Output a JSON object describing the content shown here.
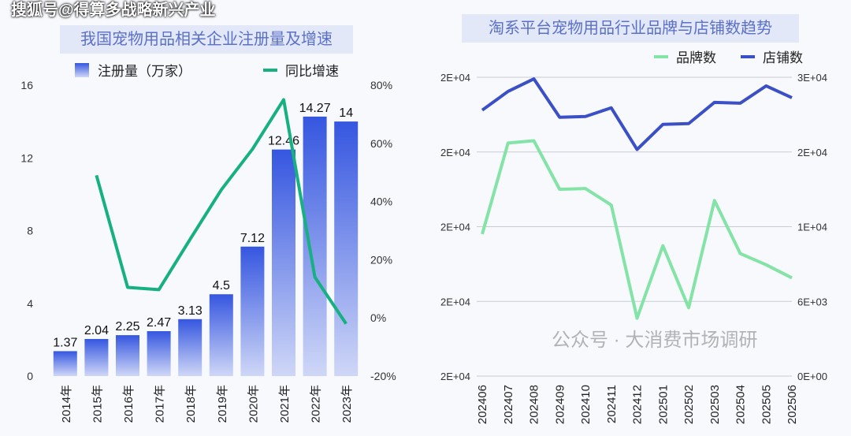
{
  "watermark_top": "搜狐号@得算多战略新兴产业",
  "watermark_bottom": "公众号 · 大消费市场调研",
  "colors": {
    "bar_top": "#3556e0",
    "bar_bottom": "#cfd7f7",
    "growth_line": "#17b080",
    "store_line": "#3b4fc6",
    "brand_line": "#84e3a6"
  },
  "chart_data": [
    {
      "type": "bar",
      "title": "我国宠物用品相关企业注册量及增速",
      "categories": [
        "2014年",
        "2015年",
        "2016年",
        "2017年",
        "2018年",
        "2019年",
        "2020年",
        "2021年",
        "2022年",
        "2023年"
      ],
      "series": [
        {
          "name": "注册量（万家）",
          "type": "bar",
          "axis": "left",
          "values": [
            1.37,
            2.04,
            2.25,
            2.47,
            3.13,
            4.5,
            7.12,
            12.46,
            14.27,
            14
          ],
          "labels": [
            "1.37",
            "2.04",
            "2.25",
            "2.47",
            "3.13",
            "4.5",
            "7.12",
            "12.46",
            "14.27",
            "14"
          ]
        },
        {
          "name": "同比增速",
          "type": "line",
          "axis": "right",
          "values": [
            null,
            49,
            10.5,
            9.7,
            27,
            44,
            58,
            75,
            14,
            -2
          ]
        }
      ],
      "ylim": [
        0,
        16
      ],
      "yticks": [
        "0",
        "4",
        "8",
        "12",
        "16"
      ],
      "y2lim": [
        -20,
        80
      ],
      "y2ticks": [
        "-20%",
        "0%",
        "20%",
        "40%",
        "60%",
        "80%"
      ],
      "legend": "top"
    },
    {
      "type": "line",
      "title": "淘系平台宠物用品行业品牌与店铺数趋势",
      "categories": [
        "202406",
        "202407",
        "202408",
        "202409",
        "202410",
        "202411",
        "202412",
        "202501",
        "202502",
        "202503",
        "202504",
        "202505",
        "202506"
      ],
      "series": [
        {
          "name": "品牌数",
          "axis": "left",
          "values": [
            19800,
            22240,
            22300,
            21000,
            21020,
            20580,
            17550,
            19490,
            17830,
            20700,
            19280,
            18980,
            18630
          ]
        },
        {
          "name": "店铺数",
          "axis": "right",
          "values": [
            26700,
            28580,
            29840,
            25980,
            26060,
            26930,
            22750,
            25270,
            25350,
            27480,
            27400,
            29130,
            27950
          ]
        }
      ],
      "ylim": [
        16000,
        24000
      ],
      "yticks": [
        "2E+04",
        "2E+04",
        "2E+04",
        "2E+04",
        "2E+04"
      ],
      "y2lim": [
        0,
        30000
      ],
      "y2ticks": [
        "0E+00",
        "6E+03",
        "1E+04",
        "2E+04",
        "3E+04"
      ],
      "legend": "top-right"
    }
  ]
}
